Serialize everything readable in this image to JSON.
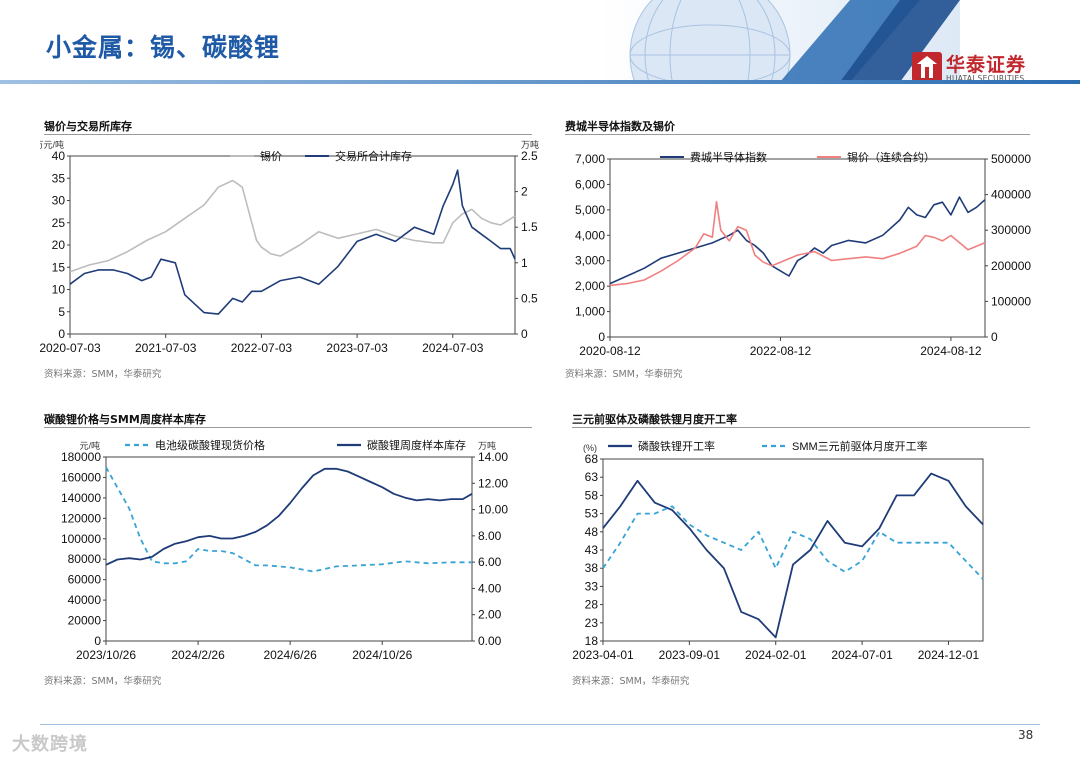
{
  "slide": {
    "title": "小金属：锡、碳酸锂",
    "page_number": "38",
    "watermark": "大数跨境",
    "logo_cn": "华泰证券",
    "logo_en": "HUATAI SECURITIES",
    "colors": {
      "brand_blue": "#1f5aa6",
      "brand_red": "#c0282d"
    }
  },
  "panels": {
    "tin": {
      "title": "锡价与交易所库存",
      "source": "资料来源：SMM，华泰研究"
    },
    "sox": {
      "title": "费城半导体指数及锡价",
      "source": "资料来源：SMM，华泰研究"
    },
    "li": {
      "title": "碳酸锂价格与SMM周度样本库存",
      "source": "资料来源：SMM，华泰研究"
    },
    "cathode": {
      "title": "三元前驱体及磷酸铁锂月度开工率",
      "source": "资料来源：SMM，华泰研究"
    }
  },
  "chart_data": [
    {
      "id": "tin",
      "type": "line",
      "left_unit": "万元/吨",
      "right_unit": "万吨",
      "ylim": [
        0,
        40
      ],
      "y2lim": [
        0,
        2.5
      ],
      "yticks": [
        "0",
        "5",
        "10",
        "15",
        "20",
        "25",
        "30",
        "35",
        "40"
      ],
      "y2ticks": [
        "0",
        "0.5",
        "1",
        "1.5",
        "2",
        "2.5"
      ],
      "xlabels": [
        "2020-07-03",
        "2021-07-03",
        "2022-07-03",
        "2023-07-03",
        "2024-07-03"
      ],
      "xlabel_positions": [
        0,
        1,
        2,
        3,
        4
      ],
      "xlim": [
        0,
        4.65
      ],
      "legend": "top",
      "series": [
        {
          "name": "锡价",
          "axis": "left",
          "color": "#bdbdbd",
          "x": [
            0,
            0.2,
            0.4,
            0.6,
            0.8,
            1.0,
            1.2,
            1.4,
            1.55,
            1.7,
            1.8,
            1.9,
            1.95,
            2.0,
            2.1,
            2.2,
            2.4,
            2.6,
            2.8,
            3.0,
            3.2,
            3.4,
            3.6,
            3.8,
            3.9,
            4.0,
            4.1,
            4.2,
            4.3,
            4.4,
            4.5,
            4.65
          ],
          "y": [
            14,
            15.5,
            16.5,
            18.5,
            21,
            23,
            26,
            29,
            33,
            34.5,
            33,
            25,
            21,
            19.5,
            18,
            17.5,
            20,
            23,
            21.5,
            22.5,
            23.5,
            22,
            21,
            20.5,
            20.5,
            25,
            27,
            28,
            26,
            25,
            24.5,
            26.5
          ]
        },
        {
          "name": "交易所合计库存",
          "axis": "right",
          "color": "#1f3c78",
          "x": [
            0,
            0.15,
            0.3,
            0.45,
            0.6,
            0.75,
            0.85,
            0.95,
            1.1,
            1.2,
            1.4,
            1.55,
            1.7,
            1.8,
            1.9,
            2.0,
            2.2,
            2.4,
            2.6,
            2.8,
            3.0,
            3.2,
            3.4,
            3.6,
            3.8,
            3.9,
            4.0,
            4.05,
            4.1,
            4.2,
            4.3,
            4.4,
            4.5,
            4.6,
            4.65
          ],
          "y": [
            0.7,
            0.85,
            0.9,
            0.9,
            0.85,
            0.75,
            0.8,
            1.05,
            1.0,
            0.55,
            0.3,
            0.28,
            0.5,
            0.45,
            0.6,
            0.6,
            0.75,
            0.8,
            0.7,
            0.95,
            1.3,
            1.4,
            1.3,
            1.5,
            1.4,
            1.8,
            2.1,
            2.3,
            1.8,
            1.5,
            1.4,
            1.3,
            1.2,
            1.2,
            1.05
          ]
        }
      ]
    },
    {
      "id": "sox",
      "type": "line",
      "ylim": [
        0,
        7000
      ],
      "y2lim": [
        0,
        500000
      ],
      "yticks": [
        "0",
        "1,000",
        "2,000",
        "3,000",
        "4,000",
        "5,000",
        "6,000",
        "7,000"
      ],
      "y2ticks": [
        "0",
        "100000",
        "200000",
        "300000",
        "400000",
        "500000"
      ],
      "xlabels": [
        "2020-08-12",
        "2022-08-12",
        "2024-08-12"
      ],
      "xlabel_positions": [
        0,
        2,
        4
      ],
      "xlim": [
        0,
        4.4
      ],
      "legend": "top",
      "series": [
        {
          "name": "费城半导体指数",
          "axis": "left",
          "color": "#1f3c78",
          "x": [
            0,
            0.2,
            0.4,
            0.6,
            0.8,
            1.0,
            1.2,
            1.4,
            1.5,
            1.6,
            1.7,
            1.8,
            1.9,
            2.0,
            2.1,
            2.2,
            2.3,
            2.4,
            2.5,
            2.6,
            2.8,
            3.0,
            3.2,
            3.4,
            3.5,
            3.6,
            3.7,
            3.8,
            3.9,
            4.0,
            4.1,
            4.2,
            4.3,
            4.4
          ],
          "y": [
            2100,
            2400,
            2700,
            3100,
            3300,
            3500,
            3700,
            4000,
            4200,
            3800,
            3600,
            3300,
            2800,
            2600,
            2400,
            3000,
            3200,
            3500,
            3300,
            3600,
            3800,
            3700,
            4000,
            4600,
            5100,
            4800,
            4700,
            5200,
            5300,
            4800,
            5500,
            4900,
            5100,
            5400
          ]
        },
        {
          "name": "锡价（连续合约）",
          "axis": "right",
          "color": "#f08080",
          "x": [
            0,
            0.2,
            0.4,
            0.6,
            0.8,
            1.0,
            1.1,
            1.2,
            1.25,
            1.3,
            1.4,
            1.5,
            1.6,
            1.7,
            1.8,
            1.9,
            2.0,
            2.2,
            2.4,
            2.6,
            2.8,
            3.0,
            3.2,
            3.4,
            3.6,
            3.7,
            3.8,
            3.9,
            4.0,
            4.2,
            4.4
          ],
          "y": [
            145000,
            150000,
            160000,
            185000,
            215000,
            250000,
            290000,
            280000,
            380000,
            300000,
            270000,
            310000,
            300000,
            230000,
            210000,
            200000,
            210000,
            230000,
            240000,
            215000,
            220000,
            225000,
            220000,
            235000,
            255000,
            285000,
            280000,
            270000,
            285000,
            245000,
            265000
          ]
        }
      ]
    },
    {
      "id": "li",
      "type": "line",
      "left_unit": "元/吨",
      "right_unit": "万吨",
      "ylim": [
        0,
        180000
      ],
      "y2lim": [
        0,
        14
      ],
      "yticks": [
        "0",
        "20000",
        "40000",
        "60000",
        "80000",
        "100000",
        "120000",
        "140000",
        "160000",
        "180000"
      ],
      "y2ticks": [
        "0.00",
        "2.00",
        "4.00",
        "6.00",
        "8.00",
        "10.00",
        "12.00",
        "14.00"
      ],
      "xlabels": [
        "2023/10/26",
        "2024/2/26",
        "2024/6/26",
        "2024/10/26"
      ],
      "xlabel_positions": [
        0,
        4,
        8,
        12
      ],
      "xlim": [
        0,
        15.9
      ],
      "legend": "top",
      "series": [
        {
          "name": "电池级碳酸锂现货价格",
          "axis": "left",
          "color": "#38a3d6",
          "dashed": true,
          "x": [
            0,
            0.5,
            1,
            1.5,
            2,
            2.5,
            3,
            3.5,
            4,
            4.5,
            5,
            5.5,
            6,
            6.5,
            7,
            8,
            9,
            10,
            11,
            12,
            13,
            14,
            15,
            15.9
          ],
          "y": [
            170000,
            150000,
            130000,
            100000,
            78000,
            76000,
            76000,
            78000,
            90000,
            88000,
            88000,
            86000,
            80000,
            74000,
            74000,
            72000,
            68000,
            73000,
            74000,
            75000,
            78000,
            76000,
            77000,
            77000
          ]
        },
        {
          "name": "碳酸锂周度样本库存",
          "axis": "right",
          "color": "#1f3c78",
          "x": [
            0,
            0.5,
            1,
            1.5,
            2,
            2.5,
            3,
            3.5,
            4,
            4.5,
            5,
            5.5,
            6,
            6.5,
            7,
            7.5,
            8,
            8.5,
            9,
            9.5,
            10,
            10.5,
            11,
            11.5,
            12,
            12.5,
            13,
            13.5,
            14,
            14.5,
            15,
            15.5,
            15.9
          ],
          "y": [
            5.8,
            6.2,
            6.3,
            6.2,
            6.4,
            7.0,
            7.4,
            7.6,
            7.9,
            8.0,
            7.8,
            7.8,
            8.0,
            8.3,
            8.8,
            9.5,
            10.5,
            11.6,
            12.6,
            13.1,
            13.1,
            12.9,
            12.5,
            12.1,
            11.7,
            11.2,
            10.9,
            10.7,
            10.8,
            10.7,
            10.8,
            10.8,
            11.2
          ]
        }
      ]
    },
    {
      "id": "cathode",
      "type": "line",
      "left_unit": "(%)",
      "ylim": [
        18,
        68
      ],
      "yticks": [
        "18",
        "23",
        "28",
        "33",
        "38",
        "43",
        "48",
        "53",
        "58",
        "63",
        "68"
      ],
      "xlabels": [
        "2023-04-01",
        "2023-09-01",
        "2024-02-01",
        "2024-07-01",
        "2024-12-01"
      ],
      "xlabel_positions": [
        0,
        5,
        10,
        15,
        20
      ],
      "xlim": [
        0,
        22
      ],
      "legend": "top",
      "series": [
        {
          "name": "磷酸铁锂开工率",
          "axis": "left",
          "color": "#1f3c78",
          "x": [
            0,
            1,
            2,
            3,
            4,
            5,
            6,
            7,
            8,
            9,
            10,
            11,
            12,
            13,
            14,
            15,
            16,
            17,
            18,
            19,
            20,
            21,
            22
          ],
          "y": [
            49,
            55,
            62,
            56,
            54,
            49,
            43,
            38,
            26,
            24,
            19,
            39,
            43,
            51,
            45,
            44,
            49,
            58,
            58,
            64,
            62,
            55,
            50
          ]
        },
        {
          "name": "SMM三元前驱体月度开工率",
          "axis": "left",
          "color": "#38a3d6",
          "dashed": true,
          "x": [
            0,
            1,
            2,
            3,
            4,
            5,
            6,
            7,
            8,
            9,
            10,
            11,
            12,
            13,
            14,
            15,
            16,
            17,
            18,
            19,
            20,
            21,
            22
          ],
          "y": [
            38,
            45,
            53,
            53,
            55,
            50,
            47,
            45,
            43,
            48,
            38,
            48,
            46,
            40,
            37,
            40,
            48,
            45,
            45,
            45,
            45,
            40,
            35
          ]
        }
      ]
    }
  ]
}
